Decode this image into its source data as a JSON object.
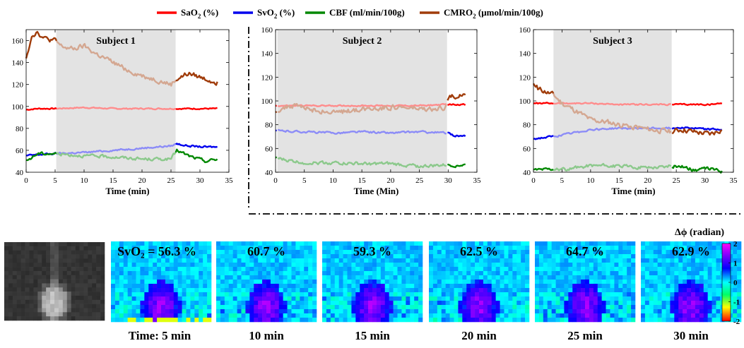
{
  "legend": [
    {
      "label": "SaO",
      "sub": "2",
      "tail": " (%)",
      "color": "#ff0000"
    },
    {
      "label": "SvO",
      "sub": "2",
      "tail": " (%)",
      "color": "#0000ee"
    },
    {
      "label": "CBF (ml/min/100g)",
      "sub": "",
      "tail": "",
      "color": "#008800"
    },
    {
      "label": "CMRO",
      "sub": "2",
      "tail": " (μmol/min/100g)",
      "color": "#a03c0a"
    }
  ],
  "chart_data": [
    {
      "type": "line",
      "title": "Subject 1",
      "xlabel": "Time (min)",
      "xlim": [
        0,
        35
      ],
      "ylim": [
        40,
        170
      ],
      "xticks": [
        0,
        5,
        10,
        15,
        20,
        25,
        30,
        35
      ],
      "yticks": [
        40,
        60,
        80,
        100,
        120,
        140,
        160
      ],
      "shaded_x": [
        5.2,
        25.8
      ],
      "series": [
        {
          "name": "SaO2",
          "color": "#ff0000",
          "x": [
            0,
            2,
            5,
            10,
            15,
            20,
            25,
            28,
            31,
            33
          ],
          "values": [
            97,
            98,
            98,
            99,
            98,
            98,
            98,
            98,
            98,
            98
          ]
        },
        {
          "name": "SvO2",
          "color": "#0000ee",
          "x": [
            0,
            2,
            5,
            10,
            15,
            20,
            25,
            26,
            28,
            31,
            33
          ],
          "values": [
            55,
            56,
            57,
            58,
            60,
            62,
            64,
            66,
            64,
            63,
            63
          ]
        },
        {
          "name": "CBF",
          "color": "#008800",
          "x": [
            0,
            2,
            5,
            10,
            15,
            20,
            25,
            26,
            28,
            31,
            33
          ],
          "values": [
            50,
            57,
            57,
            55,
            54,
            52,
            52,
            60,
            55,
            50,
            52
          ]
        },
        {
          "name": "CMRO2",
          "color": "#a03c0a",
          "x": [
            0,
            1,
            2,
            3,
            5,
            6,
            8,
            10,
            12,
            15,
            18,
            20,
            22,
            25,
            26,
            28,
            31,
            33
          ],
          "values": [
            145,
            165,
            168,
            162,
            160,
            155,
            152,
            155,
            148,
            140,
            132,
            128,
            125,
            120,
            125,
            130,
            125,
            122
          ]
        }
      ]
    },
    {
      "type": "line",
      "title": "Subject 2",
      "xlabel": "Time (Min)",
      "xlim": [
        0,
        35
      ],
      "ylim": [
        40,
        160
      ],
      "xticks": [
        0,
        5,
        10,
        15,
        20,
        25,
        30,
        35
      ],
      "yticks": [
        40,
        60,
        80,
        100,
        120,
        140,
        160
      ],
      "shaded_x": [
        0.3,
        29.8
      ],
      "series": [
        {
          "name": "SaO2",
          "color": "#ff0000",
          "x": [
            0,
            5,
            10,
            15,
            20,
            25,
            29.8,
            31,
            33
          ],
          "values": [
            96,
            96,
            96,
            96,
            96,
            96,
            97,
            97,
            97
          ]
        },
        {
          "name": "SvO2",
          "color": "#0000ee",
          "x": [
            0,
            5,
            10,
            15,
            20,
            25,
            29.8,
            31,
            33
          ],
          "values": [
            75,
            74,
            73,
            74,
            73,
            74,
            73,
            71,
            70
          ]
        },
        {
          "name": "CBF",
          "color": "#008800",
          "x": [
            0,
            2,
            5,
            10,
            15,
            20,
            25,
            29.8,
            31,
            33
          ],
          "values": [
            52,
            50,
            48,
            48,
            47,
            47,
            45,
            46,
            46,
            46
          ]
        },
        {
          "name": "CMRO2",
          "color": "#a03c0a",
          "x": [
            0,
            3,
            6,
            10,
            15,
            20,
            25,
            28,
            29.8,
            30.2,
            32,
            33
          ],
          "values": [
            92,
            96,
            93,
            90,
            93,
            95,
            93,
            92,
            96,
            106,
            104,
            107
          ]
        }
      ]
    },
    {
      "type": "line",
      "title": "Subject 3",
      "xlabel": "Time (min)",
      "xlim": [
        0,
        35
      ],
      "ylim": [
        40,
        160
      ],
      "xticks": [
        0,
        5,
        10,
        15,
        20,
        25,
        30,
        35
      ],
      "yticks": [
        40,
        60,
        80,
        100,
        120,
        140,
        160
      ],
      "shaded_x": [
        3.5,
        24.2
      ],
      "series": [
        {
          "name": "SaO2",
          "color": "#ff0000",
          "x": [
            0,
            5,
            10,
            15,
            20,
            24.2,
            28,
            31,
            33
          ],
          "values": [
            98,
            98,
            98,
            97,
            97,
            97,
            97,
            97,
            98
          ]
        },
        {
          "name": "SvO2",
          "color": "#0000ee",
          "x": [
            0,
            3.5,
            6,
            10,
            15,
            20,
            24.2,
            26,
            28,
            31,
            33
          ],
          "values": [
            68,
            70,
            72,
            76,
            77,
            77,
            77,
            78,
            77,
            76,
            76
          ]
        },
        {
          "name": "CBF",
          "color": "#008800",
          "x": [
            0,
            3.5,
            6,
            10,
            15,
            20,
            24.2,
            26,
            28,
            31,
            33
          ],
          "values": [
            42,
            43,
            42,
            46,
            45,
            44,
            45,
            45,
            42,
            43,
            41
          ]
        },
        {
          "name": "CMRO2",
          "color": "#a03c0a",
          "x": [
            0,
            1,
            3.5,
            5,
            8,
            10,
            13,
            15,
            18,
            20,
            24.2,
            26,
            28,
            31,
            33
          ],
          "values": [
            113,
            110,
            105,
            98,
            90,
            84,
            82,
            80,
            78,
            76,
            74,
            76,
            74,
            72,
            76
          ]
        }
      ]
    }
  ],
  "maps": {
    "anatomy_name": "anatomical-image",
    "labels": [
      "SvO₂ = 56.3 %",
      "60.7 %",
      "59.3 %",
      "62.5 %",
      "64.7 %",
      "62.9 %"
    ],
    "times": [
      "Time: 5 min",
      "10 min",
      "15 min",
      "20 min",
      "25 min",
      "30 min"
    ]
  },
  "colorbar": {
    "title": "Δϕ (radian)",
    "ticks": [
      2,
      1,
      0,
      -1,
      -2
    ],
    "stops": [
      "#ff0000",
      "#ffff00",
      "#00ff66",
      "#00ffff",
      "#0000ff",
      "#ff00ff"
    ]
  }
}
